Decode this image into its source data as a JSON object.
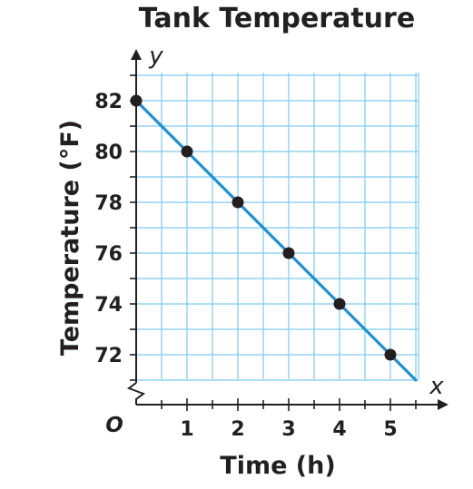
{
  "chart_data": {
    "type": "line",
    "title": "Tank Temperature",
    "xlabel": "Time (h)",
    "ylabel": "Temperature (°F)",
    "x_axis_letter": "x",
    "y_axis_letter": "y",
    "origin_label": "O",
    "x_ticks": [
      "1",
      "2",
      "3",
      "4",
      "5"
    ],
    "y_ticks": [
      "72",
      "74",
      "76",
      "78",
      "80",
      "82"
    ],
    "xlim": [
      0,
      5.5
    ],
    "ylim": [
      71,
      83
    ],
    "y_axis_break": true,
    "grid": true,
    "line_color": "#1f8fd0",
    "grid_color": "#7ccbef",
    "point_color": "#231f20",
    "series": [
      {
        "x": [
          0,
          1,
          2,
          3,
          4,
          5
        ],
        "y": [
          82,
          80,
          78,
          76,
          74,
          72
        ]
      }
    ],
    "trend_line": {
      "x_start": 0,
      "y_start": 82,
      "x_end": 5.5,
      "y_end": 71
    }
  }
}
